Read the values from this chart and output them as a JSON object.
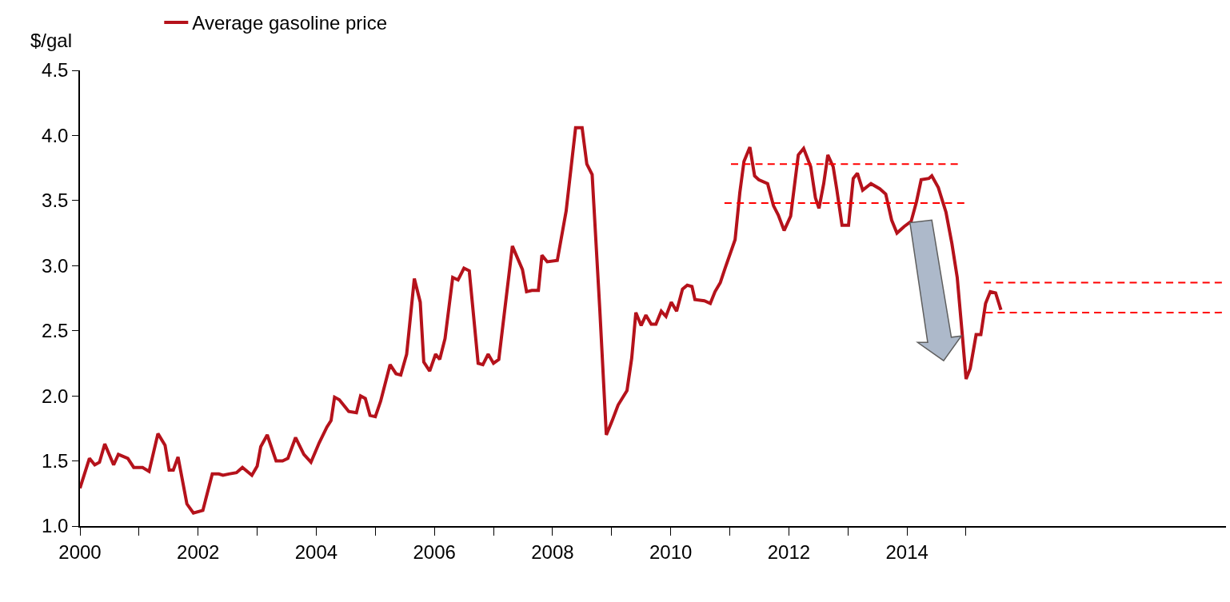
{
  "chart_data": {
    "type": "line",
    "ylabel": "$/gal",
    "xlim": [
      2000,
      2019.4
    ],
    "xticks": [
      {
        "value": 2000,
        "label": "2000"
      },
      {
        "value": 2001,
        "label": null
      },
      {
        "value": 2002,
        "label": "2002"
      },
      {
        "value": 2003,
        "label": null
      },
      {
        "value": 2004,
        "label": "2004"
      },
      {
        "value": 2005,
        "label": null
      },
      {
        "value": 2006,
        "label": "2006"
      },
      {
        "value": 2007,
        "label": null
      },
      {
        "value": 2008,
        "label": "2008"
      },
      {
        "value": 2009,
        "label": null
      },
      {
        "value": 2010,
        "label": "2010"
      },
      {
        "value": 2011,
        "label": null
      },
      {
        "value": 2012,
        "label": "2012"
      },
      {
        "value": 2013,
        "label": null
      },
      {
        "value": 2014,
        "label": "2014"
      },
      {
        "value": 2015,
        "label": null
      }
    ],
    "ylim": [
      1.0,
      4.5
    ],
    "yticks": [
      {
        "value": 1.0,
        "label": "1.0"
      },
      {
        "value": 1.5,
        "label": "1.5"
      },
      {
        "value": 2.0,
        "label": "2.0"
      },
      {
        "value": 2.5,
        "label": "2.5"
      },
      {
        "value": 3.0,
        "label": "3.0"
      },
      {
        "value": 3.5,
        "label": "3.5"
      },
      {
        "value": 4.0,
        "label": "4.0"
      },
      {
        "value": 4.5,
        "label": "4.5"
      }
    ],
    "legend": "top left",
    "series": [
      {
        "name": "Average gasoline price",
        "color": "#b5121b",
        "line_style": "solid",
        "x": [
          2000.0,
          2000.16,
          2000.25,
          2000.33,
          2000.42,
          2000.57,
          2000.65,
          2000.81,
          2000.91,
          2001.06,
          2001.17,
          2001.32,
          2001.44,
          2001.51,
          2001.58,
          2001.66,
          2001.81,
          2001.92,
          2002.08,
          2002.24,
          2002.35,
          2002.42,
          2002.52,
          2002.65,
          2002.75,
          2002.91,
          2003.0,
          2003.06,
          2003.17,
          2003.32,
          2003.43,
          2003.52,
          2003.65,
          2003.79,
          2003.91,
          2004.05,
          2004.18,
          2004.25,
          2004.31,
          2004.39,
          2004.55,
          2004.68,
          2004.75,
          2004.83,
          2004.91,
          2005.0,
          2005.09,
          2005.25,
          2005.35,
          2005.43,
          2005.53,
          2005.66,
          2005.76,
          2005.82,
          2005.92,
          2006.02,
          2006.09,
          2006.18,
          2006.31,
          2006.4,
          2006.5,
          2006.59,
          2006.74,
          2006.82,
          2006.91,
          2007.0,
          2007.09,
          2007.32,
          2007.49,
          2007.56,
          2007.65,
          2007.76,
          2007.82,
          2007.91,
          2008.08,
          2008.23,
          2008.39,
          2008.5,
          2008.58,
          2008.67,
          2008.8,
          2008.91,
          2009.01,
          2009.11,
          2009.26,
          2009.34,
          2009.41,
          2009.5,
          2009.58,
          2009.67,
          2009.75,
          2009.84,
          2009.92,
          2010.01,
          2010.1,
          2010.2,
          2010.28,
          2010.36,
          2010.41,
          2010.57,
          2010.67,
          2010.75,
          2010.84,
          2010.92,
          2011.09,
          2011.17,
          2011.24,
          2011.34,
          2011.42,
          2011.49,
          2011.64,
          2011.74,
          2011.82,
          2011.92,
          2012.03,
          2012.16,
          2012.25,
          2012.37,
          2012.45,
          2012.51,
          2012.59,
          2012.66,
          2012.75,
          2012.81,
          2012.9,
          2013.01,
          2013.09,
          2013.16,
          2013.25,
          2013.39,
          2013.54,
          2013.64,
          2013.74,
          2013.83,
          2013.95,
          2014.07,
          2014.16,
          2014.24,
          2014.37,
          2014.42,
          2014.53,
          2014.66,
          2014.76,
          2014.85,
          2014.93,
          2015.0,
          2015.07,
          2015.17,
          2015.25,
          2015.33,
          2015.41,
          2015.5,
          2015.59
        ],
        "values": [
          1.29,
          1.52,
          1.47,
          1.49,
          1.63,
          1.47,
          1.55,
          1.52,
          1.45,
          1.45,
          1.42,
          1.71,
          1.62,
          1.43,
          1.43,
          1.53,
          1.17,
          1.1,
          1.12,
          1.4,
          1.4,
          1.39,
          1.4,
          1.41,
          1.45,
          1.39,
          1.46,
          1.61,
          1.7,
          1.5,
          1.5,
          1.52,
          1.68,
          1.55,
          1.49,
          1.64,
          1.76,
          1.81,
          1.99,
          1.97,
          1.88,
          1.87,
          2.0,
          1.98,
          1.85,
          1.84,
          1.96,
          2.24,
          2.17,
          2.16,
          2.32,
          2.9,
          2.72,
          2.26,
          2.19,
          2.32,
          2.28,
          2.44,
          2.91,
          2.89,
          2.98,
          2.96,
          2.25,
          2.24,
          2.32,
          2.25,
          2.28,
          3.15,
          2.97,
          2.8,
          2.81,
          2.81,
          3.08,
          3.03,
          3.04,
          3.42,
          4.06,
          4.06,
          3.78,
          3.7,
          2.66,
          1.7,
          1.81,
          1.93,
          2.04,
          2.29,
          2.64,
          2.54,
          2.62,
          2.55,
          2.55,
          2.65,
          2.61,
          2.72,
          2.65,
          2.82,
          2.85,
          2.84,
          2.74,
          2.73,
          2.71,
          2.8,
          2.87,
          2.98,
          3.2,
          3.56,
          3.8,
          3.91,
          3.69,
          3.66,
          3.63,
          3.46,
          3.39,
          3.27,
          3.38,
          3.85,
          3.9,
          3.76,
          3.52,
          3.44,
          3.63,
          3.85,
          3.76,
          3.59,
          3.31,
          3.31,
          3.67,
          3.71,
          3.58,
          3.63,
          3.59,
          3.55,
          3.35,
          3.25,
          3.3,
          3.34,
          3.49,
          3.66,
          3.67,
          3.69,
          3.6,
          3.41,
          3.17,
          2.91,
          2.5,
          2.13,
          2.21,
          2.47,
          2.47,
          2.71,
          2.8,
          2.79,
          2.66
        ]
      },
      {
        "color": "#ff0000",
        "line_style": "dashed",
        "x": [
          2011.02,
          2014.86
        ],
        "values": [
          3.78,
          3.78
        ]
      },
      {
        "color": "#ff0000",
        "line_style": "dashed",
        "x": [
          2010.91,
          2014.97
        ],
        "values": [
          3.48,
          3.48
        ]
      },
      {
        "color": "#ff0000",
        "line_style": "dashed",
        "x": [
          2015.3,
          2019.33
        ],
        "values": [
          2.87,
          2.87
        ]
      },
      {
        "color": "#ff0000",
        "line_style": "dashed",
        "x": [
          2015.33,
          2019.33
        ],
        "values": [
          2.64,
          2.64
        ]
      }
    ]
  }
}
